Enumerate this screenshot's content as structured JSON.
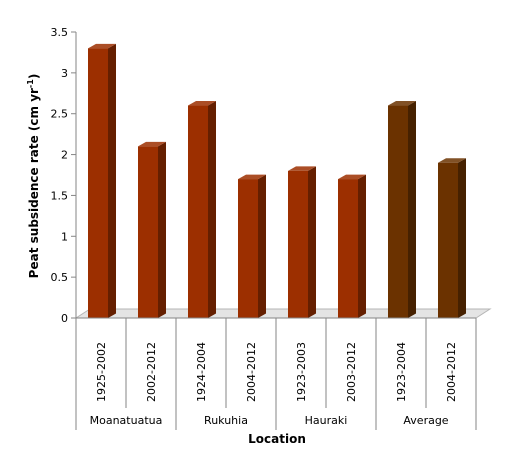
{
  "chart_data": {
    "type": "bar",
    "title": "",
    "xlabel": "Location",
    "ylabel_main": "Peat subsidence rate (cm yr",
    "ylabel_sup": "-1",
    "ylabel_close": ")",
    "ylim": [
      0,
      3.5
    ],
    "yticks": [
      "0",
      "0.5",
      "1",
      "1.5",
      "2",
      "2.5",
      "3",
      "3.5"
    ],
    "grid": false,
    "legend": "none",
    "style_3d": true,
    "bars": [
      {
        "period": "1925-2002",
        "location": "Moanatuatua",
        "value": 3.3,
        "color": "#9c2f00"
      },
      {
        "period": "2002-2012",
        "location": "Moanatuatua",
        "value": 2.1,
        "color": "#9c2f00"
      },
      {
        "period": "1924-2004",
        "location": "Rukuhia",
        "value": 2.6,
        "color": "#9c2f00"
      },
      {
        "period": "2004-2012",
        "location": "Rukuhia",
        "value": 1.7,
        "color": "#9c2f00"
      },
      {
        "period": "1923-2003",
        "location": "Hauraki",
        "value": 1.8,
        "color": "#9c2f00"
      },
      {
        "period": "2003-2012",
        "location": "Hauraki",
        "value": 1.7,
        "color": "#9c2f00"
      },
      {
        "period": "1923-2004",
        "location": "Average",
        "value": 2.6,
        "color": "#6b3200"
      },
      {
        "period": "2004-2012",
        "location": "Average",
        "value": 1.9,
        "color": "#6b3200"
      }
    ],
    "groups": [
      "Moanatuatua",
      "Rukuhia",
      "Hauraki",
      "Average"
    ]
  }
}
